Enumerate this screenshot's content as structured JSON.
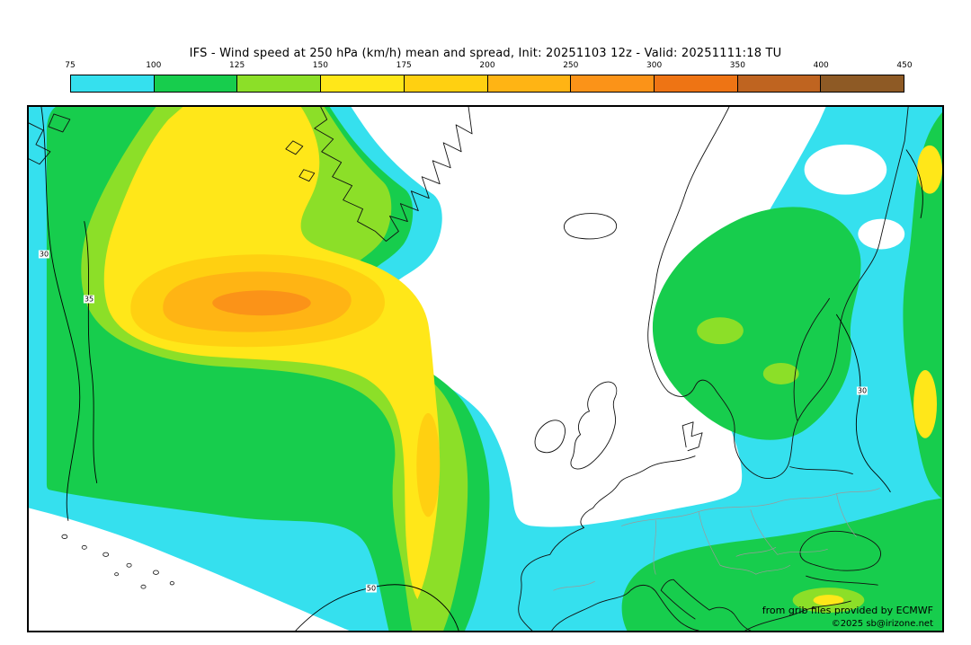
{
  "header": {
    "title": "IFS - Wind speed at 250 hPa (km/h) mean and spread, Init: 20251103 12z - Valid: 20251111:18 TU"
  },
  "colorbar": {
    "tick_labels": [
      "75",
      "100",
      "125",
      "150",
      "175",
      "200",
      "250",
      "300",
      "350",
      "400",
      "450"
    ],
    "colors": [
      "#35e0ee",
      "#17cd4d",
      "#8cdf28",
      "#ffe719",
      "#ffd011",
      "#ffb414",
      "#fb9318",
      "#ee7414",
      "#bf6420",
      "#8e5a25"
    ]
  },
  "map": {
    "contour_labels": [
      "30",
      "35",
      "50",
      "30"
    ],
    "attribution": {
      "line1": "from grib files provided by ECMWF",
      "line2": "©2025 sb@irizone.net"
    }
  },
  "chart_data": {
    "type": "filled_contour_map",
    "title": "IFS - Wind speed at 250 hPa (km/h) mean and spread",
    "init": "20251103 12z",
    "valid": "20251111:18 TU",
    "colorbar_levels_kmh": [
      75,
      100,
      125,
      150,
      175,
      200,
      250,
      300,
      350,
      400,
      450
    ],
    "colorbar_colors": [
      "#35e0ee",
      "#17cd4d",
      "#8cdf28",
      "#ffe719",
      "#ffd011",
      "#ffb414",
      "#fb9318",
      "#ee7414",
      "#bf6420",
      "#8e5a25"
    ],
    "visible_spread_contour_labels": [
      30,
      35,
      50,
      30
    ],
    "region": "North Atlantic and Europe"
  }
}
